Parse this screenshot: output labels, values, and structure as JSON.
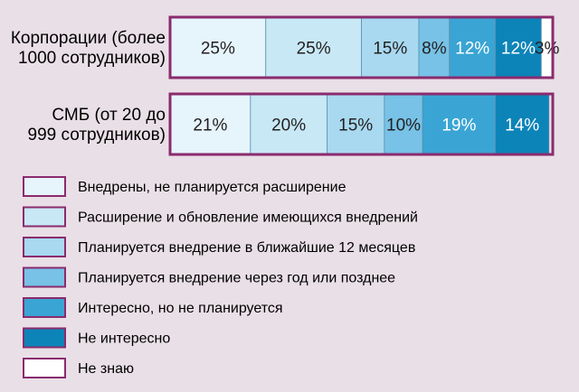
{
  "chart_data": {
    "type": "bar",
    "stacked": true,
    "normalized": true,
    "orientation": "horizontal",
    "title": "",
    "xlabel": "",
    "ylabel": "",
    "xlim": [
      0,
      100
    ],
    "grid": false,
    "legend_position": "bottom-left",
    "categories": [
      [
        "Корпорации (более",
        "1000 сотрудников)"
      ],
      [
        "СМБ (от 20 до",
        "999 сотрудников)"
      ]
    ],
    "series": [
      {
        "name": "Внедрены, не планируется расширение",
        "color": "#e6f4fb",
        "values": [
          25,
          21
        ],
        "labels": [
          "25%",
          "21%"
        ]
      },
      {
        "name": "Расширение и обновление имеющихся внедрений",
        "color": "#c8e8f6",
        "values": [
          25,
          20
        ],
        "labels": [
          "25%",
          "20%"
        ]
      },
      {
        "name": "Планируется внедрение в ближайшие 12 месяцев",
        "color": "#a8d9f0",
        "values": [
          15,
          15
        ],
        "labels": [
          "15%",
          "15%"
        ]
      },
      {
        "name": "Планируется внедрение через год или позднее",
        "color": "#77c2e6",
        "values": [
          8,
          10
        ],
        "labels": [
          "8%",
          "10%"
        ]
      },
      {
        "name": "Интересно, но не планируется",
        "color": "#3aa5d4",
        "values": [
          12,
          19
        ],
        "labels": [
          "12%",
          "19%"
        ]
      },
      {
        "name": "Не интересно",
        "color": "#0d84b8",
        "values": [
          12,
          14
        ],
        "labels": [
          "12%",
          "14%"
        ]
      },
      {
        "name": "Не знаю",
        "color": "#ffffff",
        "values": [
          3,
          0
        ],
        "labels": [
          "3%",
          ""
        ]
      }
    ],
    "border_color": "#8a2b6e"
  }
}
